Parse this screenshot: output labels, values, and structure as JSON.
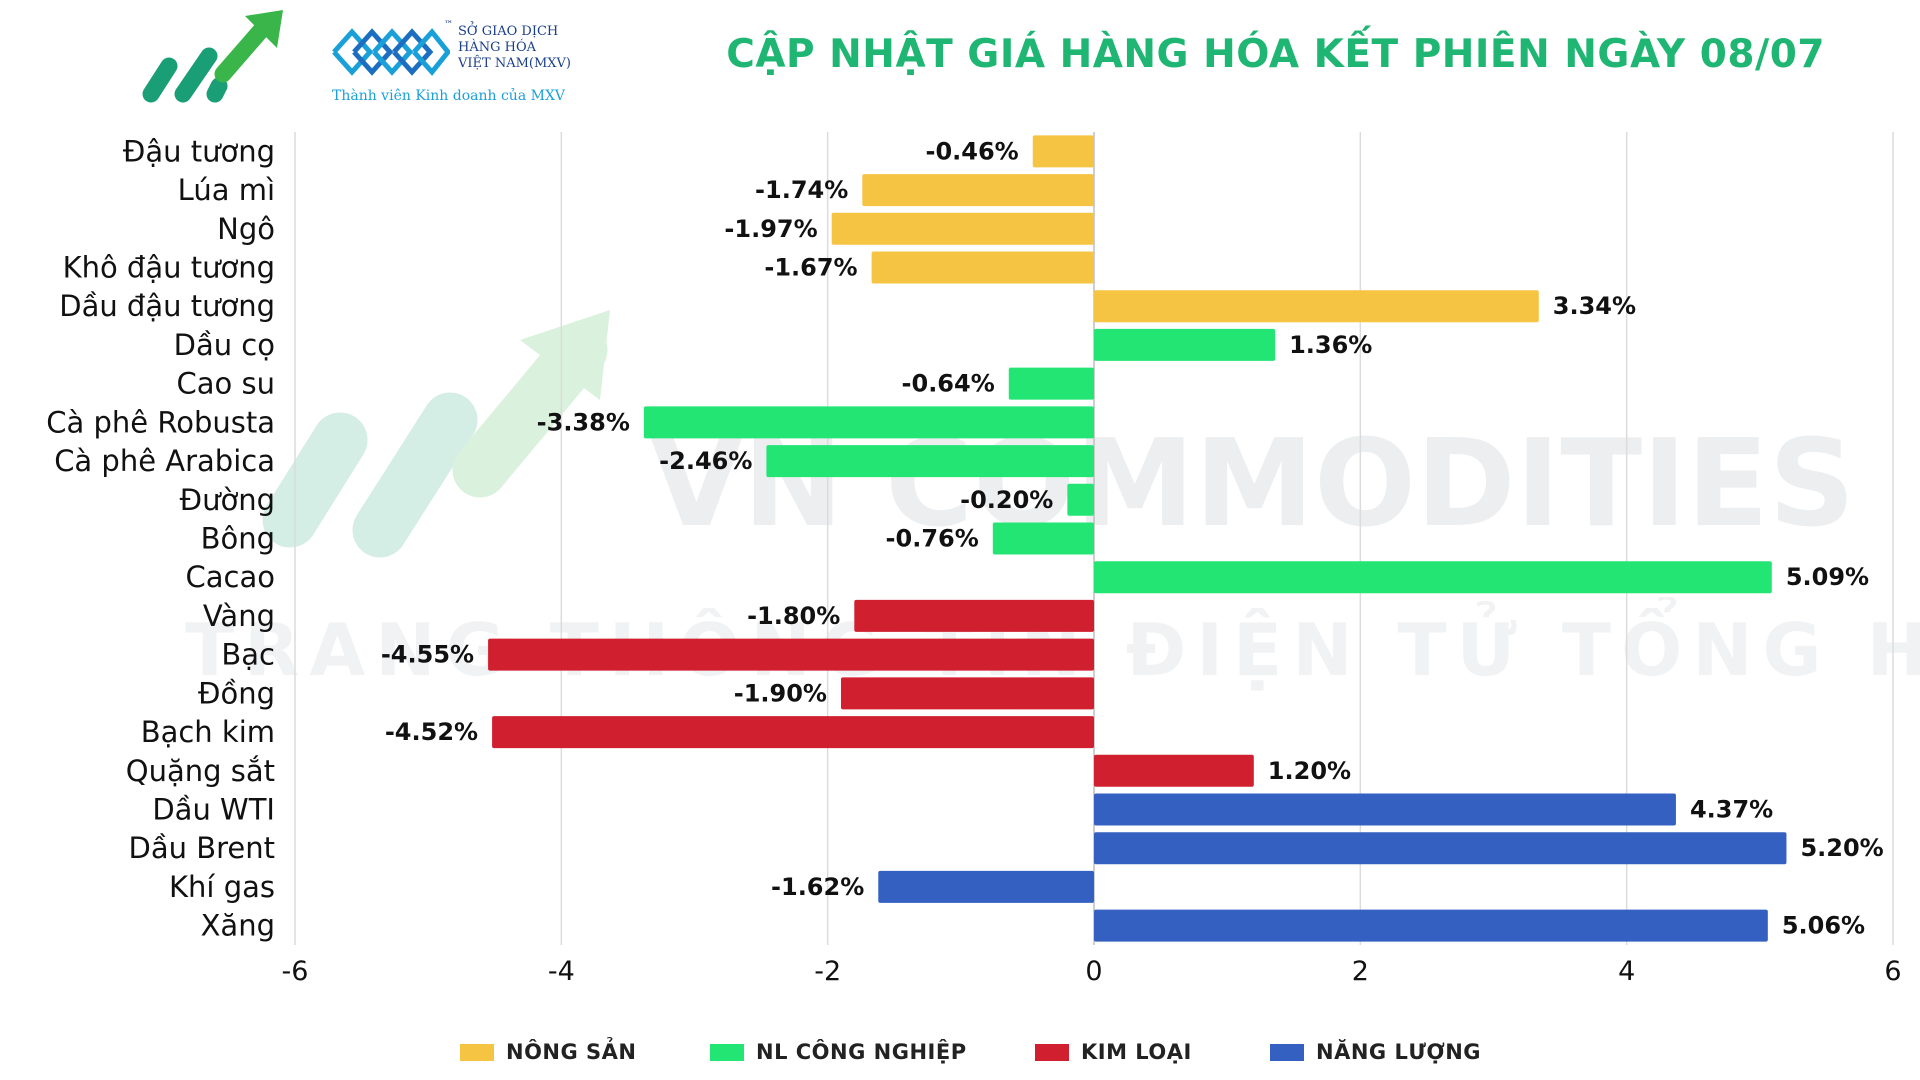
{
  "header": {
    "title": "CẬP NHẬT GIÁ HÀNG HÓA KẾT PHIÊN NGÀY 08/07",
    "mxv_line1": "SỞ GIAO DỊCH",
    "mxv_line2": "HÀNG HÓA",
    "mxv_line3": "VIỆT NAM(MXV)",
    "mxv_tm": "™",
    "mxv_sub": "Thành viên Kinh doanh của MXV"
  },
  "watermark": {
    "line1": "VN COMMODITIES",
    "line2": "TRANG THÔNG TIN ĐIỆN TỬ TỔNG HỢP"
  },
  "colors": {
    "nong_san": "#f6c443",
    "nl_cong_nghiep": "#22e574",
    "kim_loai": "#d01f2f",
    "nang_luong": "#3461c1",
    "title": "#1fb673"
  },
  "chart_data": {
    "type": "bar",
    "orientation": "horizontal",
    "title": "CẬP NHẬT GIÁ HÀNG HÓA KẾT PHIÊN NGÀY 08/07",
    "xlim": [
      -6,
      6
    ],
    "xticks": [
      -6,
      -4,
      -2,
      0,
      2,
      4,
      6
    ],
    "grid": "vertical",
    "legend_position": "bottom",
    "groups": [
      {
        "key": "nong_san",
        "name": "NÔNG SẢN"
      },
      {
        "key": "nl_cong_nghiep",
        "name": "NL CÔNG NGHIỆP"
      },
      {
        "key": "kim_loai",
        "name": "KIM LOẠI"
      },
      {
        "key": "nang_luong",
        "name": "NĂNG LƯỢNG"
      }
    ],
    "categories": [
      "Đậu tương",
      "Lúa mì",
      "Ngô",
      "Khô đậu tương",
      "Dầu đậu tương",
      "Dầu cọ",
      "Cao su",
      "Cà phê Robusta",
      "Cà phê Arabica",
      "Đường",
      "Bông",
      "Cacao",
      "Vàng",
      "Bạc",
      "Đồng",
      "Bạch kim",
      "Quặng sắt",
      "Dầu WTI",
      "Dầu Brent",
      "Khí gas",
      "Xăng"
    ],
    "values": [
      -0.46,
      -1.74,
      -1.97,
      -1.67,
      3.34,
      1.36,
      -0.64,
      -3.38,
      -2.46,
      -0.2,
      -0.76,
      5.09,
      -1.8,
      -4.55,
      -1.9,
      -4.52,
      1.2,
      4.37,
      5.2,
      -1.62,
      5.06
    ],
    "labels": [
      "-0.46%",
      "-1.74%",
      "-1.97%",
      "-1.67%",
      "3.34%",
      "1.36%",
      "-0.64%",
      "-3.38%",
      "-2.46%",
      "-0.20%",
      "-0.76%",
      "5.09%",
      "-1.80%",
      "-4.55%",
      "-1.90%",
      "-4.52%",
      "1.20%",
      "4.37%",
      "5.20%",
      "-1.62%",
      "5.06%"
    ],
    "group_of": [
      "nong_san",
      "nong_san",
      "nong_san",
      "nong_san",
      "nong_san",
      "nl_cong_nghiep",
      "nl_cong_nghiep",
      "nl_cong_nghiep",
      "nl_cong_nghiep",
      "nl_cong_nghiep",
      "nl_cong_nghiep",
      "nl_cong_nghiep",
      "kim_loai",
      "kim_loai",
      "kim_loai",
      "kim_loai",
      "kim_loai",
      "nang_luong",
      "nang_luong",
      "nang_luong",
      "nang_luong"
    ]
  }
}
